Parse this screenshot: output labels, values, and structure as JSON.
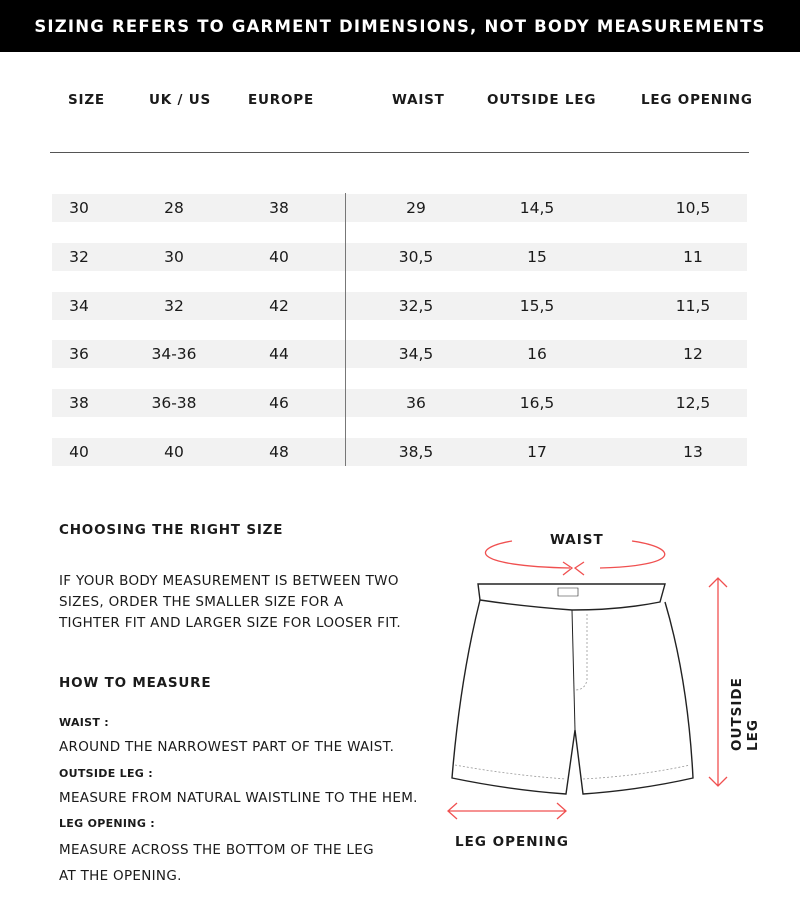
{
  "banner": "SIZING REFERS TO GARMENT DIMENSIONS, NOT BODY MEASUREMENTS",
  "table": {
    "headers": [
      "SIZE",
      "UK / US",
      "EUROPE",
      "WAIST",
      "OUTSIDE LEG",
      "LEG OPENING"
    ],
    "rows": [
      [
        "30",
        "28",
        "38",
        "29",
        "14,5",
        "10,5"
      ],
      [
        "32",
        "30",
        "40",
        "30,5",
        "15",
        "11"
      ],
      [
        "34",
        "32",
        "42",
        "32,5",
        "15,5",
        "11,5"
      ],
      [
        "36",
        "34-36",
        "44",
        "34,5",
        "16",
        "12"
      ],
      [
        "38",
        "36-38",
        "46",
        "36",
        "16,5",
        "12,5"
      ],
      [
        "40",
        "40",
        "48",
        "38,5",
        "17",
        "13"
      ]
    ]
  },
  "choosing": {
    "title": "CHOOSING THE RIGHT SIZE",
    "text": "IF YOUR BODY MEASUREMENT IS BETWEEN TWO SIZES, ORDER THE SMALLER SIZE FOR A TIGHTER FIT AND LARGER SIZE FOR LOOSER FIT."
  },
  "measure": {
    "title": "HOW TO MEASURE",
    "waist_label": "WAIST :",
    "waist_text": "AROUND THE NARROWEST PART OF THE WAIST.",
    "outside_label": "OUTSIDE LEG :",
    "outside_text": "MEASURE FROM NATURAL WAISTLINE TO THE HEM.",
    "opening_label": "LEG OPENING :",
    "opening_text": "MEASURE ACROSS THE BOTTOM OF THE LEG AT THE OPENING."
  },
  "diagram": {
    "waist": "WAIST",
    "outside_leg": "OUTSIDE LEG",
    "leg_opening": "LEG OPENING",
    "arrow_color": "#f05050"
  }
}
